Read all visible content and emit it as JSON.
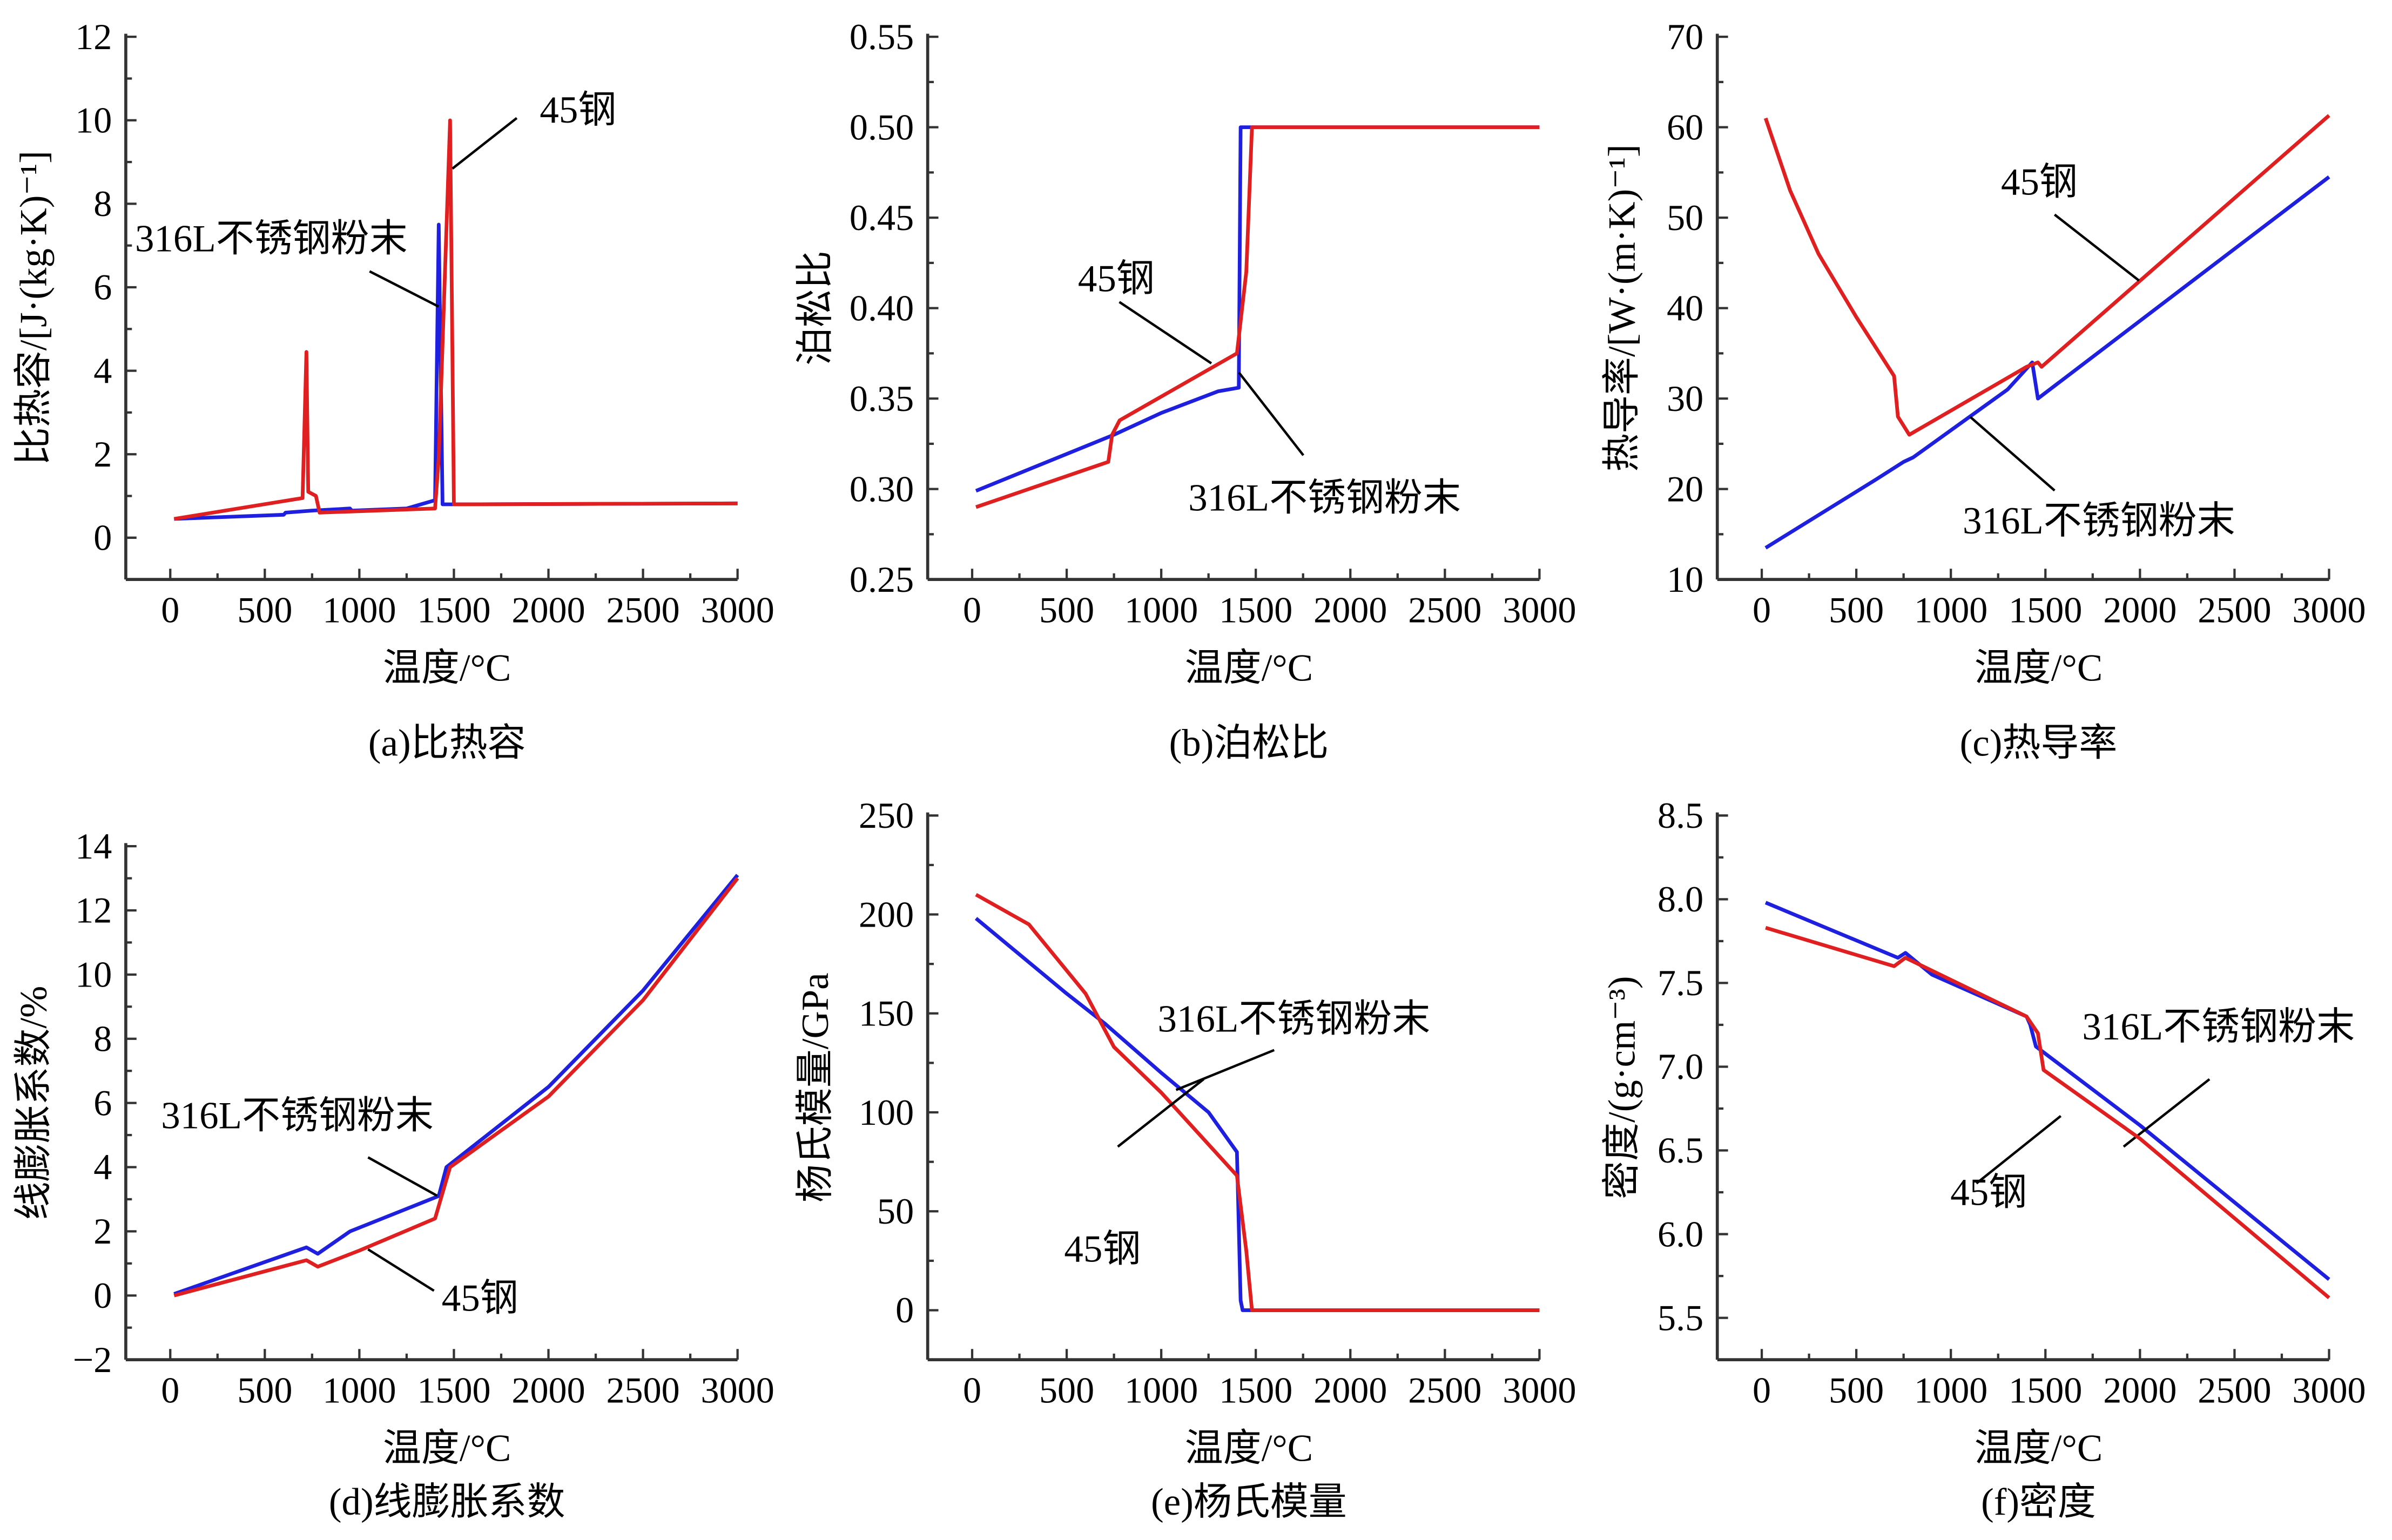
{
  "colors": {
    "316L": "#1f1fe0",
    "45": "#e02020"
  },
  "chart_data": [
    {
      "type": "line",
      "id": "a",
      "caption": "(a)比热容",
      "xlabel": "温度/°C",
      "ylabel": "比热容/[J·(kg·K)⁻¹]",
      "xlim": [
        -235,
        3000
      ],
      "ylim": [
        -1,
        12
      ],
      "xticks": [
        0,
        500,
        1000,
        1500,
        2000,
        2500,
        3000
      ],
      "yticks": [
        0,
        2,
        4,
        6,
        8,
        10,
        12
      ],
      "series": [
        {
          "name": "316L不锈钢粉末",
          "key": "316L",
          "points": [
            [
              20,
              0.45
            ],
            [
              600,
              0.55
            ],
            [
              610,
              0.6
            ],
            [
              750,
              0.65
            ],
            [
              950,
              0.7
            ],
            [
              960,
              0.65
            ],
            [
              1250,
              0.7
            ],
            [
              1400,
              0.9
            ],
            [
              1420,
              7.5
            ],
            [
              1440,
              0.8
            ],
            [
              1500,
              0.8
            ],
            [
              3000,
              0.82
            ]
          ]
        },
        {
          "name": "45钢",
          "key": "45",
          "points": [
            [
              20,
              0.45
            ],
            [
              700,
              0.95
            ],
            [
              720,
              4.45
            ],
            [
              730,
              1.1
            ],
            [
              770,
              1.0
            ],
            [
              790,
              0.6
            ],
            [
              1400,
              0.7
            ],
            [
              1420,
              1.9
            ],
            [
              1480,
              10
            ],
            [
              1500,
              0.8
            ],
            [
              3000,
              0.82
            ]
          ]
        }
      ]
    },
    {
      "type": "line",
      "id": "b",
      "caption": "(b)泊松比",
      "xlabel": "温度/°C",
      "ylabel": "泊松比",
      "xlim": [
        -235,
        3000
      ],
      "ylim": [
        0.25,
        0.55
      ],
      "xticks": [
        0,
        500,
        1000,
        1500,
        2000,
        2500,
        3000
      ],
      "yticks": [
        "0.25",
        "0.30",
        "0.35",
        "0.40",
        "0.45",
        "0.50",
        "0.55"
      ],
      "series": [
        {
          "name": "316L不锈钢粉末",
          "key": "316L",
          "points": [
            [
              20,
              0.299
            ],
            [
              750,
              0.33
            ],
            [
              1000,
              0.342
            ],
            [
              1300,
              0.354
            ],
            [
              1410,
              0.356
            ],
            [
              1420,
              0.5
            ],
            [
              3000,
              0.5
            ]
          ]
        },
        {
          "name": "45钢",
          "key": "45",
          "points": [
            [
              20,
              0.29
            ],
            [
              720,
              0.315
            ],
            [
              740,
              0.33
            ],
            [
              780,
              0.338
            ],
            [
              1400,
              0.375
            ],
            [
              1450,
              0.42
            ],
            [
              1480,
              0.5
            ],
            [
              3000,
              0.5
            ]
          ]
        }
      ]
    },
    {
      "type": "line",
      "id": "c",
      "caption": "(c)热导率",
      "xlabel": "温度/°C",
      "ylabel": "热导率/[W·(m·K)⁻¹]",
      "xlim": [
        -235,
        3000
      ],
      "ylim": [
        10,
        70
      ],
      "xticks": [
        0,
        500,
        1000,
        1500,
        2000,
        2500,
        3000
      ],
      "yticks": [
        10,
        20,
        30,
        40,
        50,
        60,
        70
      ],
      "series": [
        {
          "name": "316L不锈钢粉末",
          "key": "316L",
          "points": [
            [
              20,
              13.5
            ],
            [
              600,
              21
            ],
            [
              750,
              23
            ],
            [
              800,
              23.5
            ],
            [
              1300,
              31
            ],
            [
              1430,
              34
            ],
            [
              1460,
              30
            ],
            [
              3000,
              54.5
            ]
          ]
        },
        {
          "name": "45钢",
          "key": "45",
          "points": [
            [
              20,
              61
            ],
            [
              150,
              53
            ],
            [
              300,
              46
            ],
            [
              500,
              39
            ],
            [
              700,
              32.5
            ],
            [
              720,
              28
            ],
            [
              780,
              26
            ],
            [
              1400,
              33.5
            ],
            [
              1460,
              34
            ],
            [
              1480,
              33.5
            ],
            [
              3000,
              61.3
            ]
          ]
        }
      ]
    },
    {
      "type": "line",
      "id": "d",
      "caption": "(d)线膨胀系数",
      "xlabel": "温度/°C",
      "ylabel": "线膨胀系数/%",
      "xlim": [
        -235,
        3000
      ],
      "ylim": [
        -2,
        14
      ],
      "xticks": [
        0,
        500,
        1000,
        1500,
        2000,
        2500,
        3000
      ],
      "yticks": [
        "−2",
        "0",
        "2",
        "4",
        "6",
        "8",
        "10",
        "12",
        "14"
      ],
      "series": [
        {
          "name": "316L不锈钢粉末",
          "key": "316L",
          "points": [
            [
              20,
              0.05
            ],
            [
              720,
              1.5
            ],
            [
              780,
              1.3
            ],
            [
              950,
              2
            ],
            [
              1420,
              3.1
            ],
            [
              1460,
              4
            ],
            [
              2000,
              6.5
            ],
            [
              2500,
              9.5
            ],
            [
              3000,
              13.1
            ]
          ]
        },
        {
          "name": "45钢",
          "key": "45",
          "points": [
            [
              20,
              0
            ],
            [
              720,
              1.1
            ],
            [
              780,
              0.9
            ],
            [
              1000,
              1.4
            ],
            [
              1400,
              2.4
            ],
            [
              1480,
              4
            ],
            [
              2000,
              6.2
            ],
            [
              2500,
              9.2
            ],
            [
              3000,
              13
            ]
          ]
        }
      ]
    },
    {
      "type": "line",
      "id": "e",
      "caption": "(e)杨氏模量",
      "xlabel": "温度/°C",
      "ylabel": "杨氏模量/GPa",
      "xlim": [
        -235,
        3000
      ],
      "ylim": [
        -25,
        250
      ],
      "xticks": [
        0,
        500,
        1000,
        1500,
        2000,
        2500,
        3000
      ],
      "yticks": [
        0,
        50,
        100,
        150,
        200,
        250
      ],
      "series": [
        {
          "name": "316L不锈钢粉末",
          "key": "316L",
          "points": [
            [
              20,
              198
            ],
            [
              500,
              160
            ],
            [
              700,
              145
            ],
            [
              1000,
              120
            ],
            [
              1250,
              100
            ],
            [
              1400,
              80
            ],
            [
              1420,
              5
            ],
            [
              1430,
              0
            ],
            [
              3000,
              0
            ]
          ]
        },
        {
          "name": "45钢",
          "key": "45",
          "points": [
            [
              20,
              210
            ],
            [
              300,
              195
            ],
            [
              600,
              160
            ],
            [
              700,
              142
            ],
            [
              750,
              133
            ],
            [
              1000,
              110
            ],
            [
              1400,
              68
            ],
            [
              1450,
              30
            ],
            [
              1480,
              0
            ],
            [
              3000,
              0
            ]
          ]
        }
      ]
    },
    {
      "type": "line",
      "id": "f",
      "caption": "(f)密度",
      "xlabel": "温度/°C",
      "ylabel": "密度/(g·cm⁻³)",
      "xlim": [
        -235,
        3000
      ],
      "ylim": [
        5.25,
        8.5
      ],
      "xticks": [
        0,
        500,
        1000,
        1500,
        2000,
        2500,
        3000
      ],
      "yticks": [
        "5.5",
        "6.0",
        "6.5",
        "7.0",
        "7.5",
        "8.0",
        "8.5"
      ],
      "series": [
        {
          "name": "316L不锈钢粉末",
          "key": "316L",
          "points": [
            [
              20,
              7.98
            ],
            [
              720,
              7.65
            ],
            [
              760,
              7.68
            ],
            [
              900,
              7.55
            ],
            [
              1400,
              7.3
            ],
            [
              1420,
              7.25
            ],
            [
              1450,
              7.12
            ],
            [
              2000,
              6.65
            ],
            [
              3000,
              5.73
            ]
          ]
        },
        {
          "name": "45钢",
          "key": "45",
          "points": [
            [
              20,
              7.83
            ],
            [
              700,
              7.6
            ],
            [
              760,
              7.65
            ],
            [
              1400,
              7.3
            ],
            [
              1460,
              7.2
            ],
            [
              1490,
              6.98
            ],
            [
              2000,
              6.57
            ],
            [
              3000,
              5.62
            ]
          ]
        }
      ]
    }
  ]
}
